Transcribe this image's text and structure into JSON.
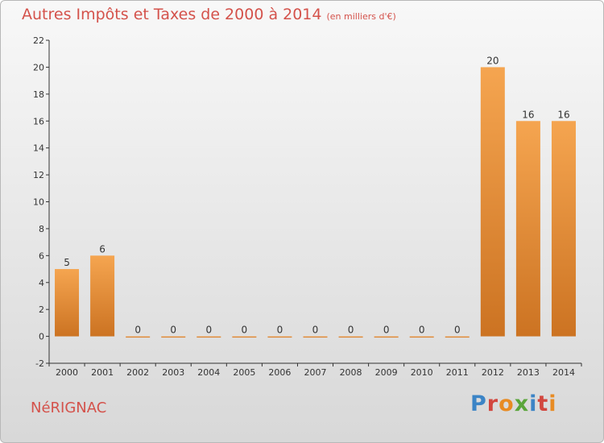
{
  "header": {
    "title": "Autres Impôts et Taxes de 2000 à 2014",
    "subtitle": "(en milliers d'€)"
  },
  "footer": {
    "location": "NéRIGNAC",
    "brand": "Proxiti"
  },
  "colors": {
    "title": "#d4524b",
    "bar_light": "#f5a550",
    "bar_dark": "#cc7322",
    "axis": "#333333",
    "grid_tick": "#333333"
  },
  "chart_data": {
    "type": "bar",
    "categories": [
      "2000",
      "2001",
      "2002",
      "2003",
      "2004",
      "2005",
      "2006",
      "2007",
      "2008",
      "2009",
      "2010",
      "2011",
      "2012",
      "2013",
      "2014"
    ],
    "values": [
      5,
      6,
      0,
      0,
      0,
      0,
      0,
      0,
      0,
      0,
      0,
      0,
      20,
      16,
      16
    ],
    "title": "Autres Impôts et Taxes de 2000 à 2014",
    "subtitle": "(en milliers d'€)",
    "ylim": [
      -2,
      22
    ],
    "yticks": [
      -2,
      0,
      2,
      4,
      6,
      8,
      10,
      12,
      14,
      16,
      18,
      20,
      22
    ],
    "grid": false,
    "data_labels": true
  }
}
